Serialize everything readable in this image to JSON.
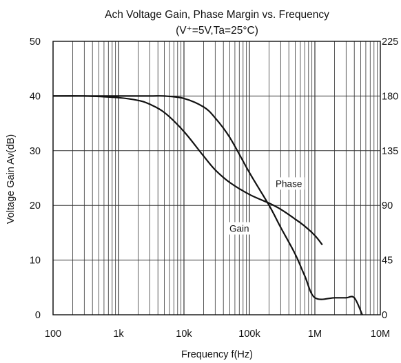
{
  "chart_data": {
    "type": "line",
    "title": "Ach Voltage Gain, Phase Margin vs. Frequency",
    "subtitle": "(V⁺=5V,Ta=25°C)",
    "xlabel": "Frequency f(Hz)",
    "ylabel": "Voltage Gain Av(dB)",
    "y2label": "",
    "xscale": "log",
    "xlim": [
      100,
      10000000
    ],
    "ylim": [
      0,
      50
    ],
    "y2lim": [
      0,
      225
    ],
    "grid": true,
    "x_ticks": [
      {
        "value": 100,
        "label": "100"
      },
      {
        "value": 1000,
        "label": "1k"
      },
      {
        "value": 10000,
        "label": "10k"
      },
      {
        "value": 100000,
        "label": "100k"
      },
      {
        "value": 1000000,
        "label": "1M"
      },
      {
        "value": 10000000,
        "label": "10M"
      }
    ],
    "y_ticks": [
      {
        "value": 0,
        "label": "0"
      },
      {
        "value": 10,
        "label": "10"
      },
      {
        "value": 20,
        "label": "20"
      },
      {
        "value": 30,
        "label": "30"
      },
      {
        "value": 40,
        "label": "40"
      },
      {
        "value": 50,
        "label": "50"
      }
    ],
    "y2_ticks": [
      {
        "value": 0,
        "label": "0"
      },
      {
        "value": 45,
        "label": "45"
      },
      {
        "value": 90,
        "label": "90"
      },
      {
        "value": 135,
        "label": "135"
      },
      {
        "value": 180,
        "label": "180"
      },
      {
        "value": 225,
        "label": "225"
      }
    ],
    "series": [
      {
        "name": "Gain",
        "axis": "left",
        "x": [
          100,
          300,
          1000,
          2000,
          3000,
          5000,
          10000,
          20000,
          30000,
          50000,
          100000,
          200000,
          300000,
          500000,
          700000,
          1000000,
          1300000
        ],
        "values": [
          40,
          40,
          39.7,
          39.2,
          38.5,
          37,
          33.5,
          29,
          26.5,
          24.2,
          22,
          20.4,
          19.3,
          17.5,
          16.2,
          14.5,
          12.8
        ],
        "color": "#111111"
      },
      {
        "name": "Phase",
        "axis": "right",
        "x": [
          100,
          1000,
          3000,
          5000,
          10000,
          20000,
          30000,
          50000,
          100000,
          200000,
          300000,
          500000,
          700000,
          1000000,
          2000000,
          3000000,
          4000000,
          5300000
        ],
        "values": [
          180,
          180,
          180,
          180,
          178,
          171,
          162,
          146,
          117,
          90,
          72,
          50,
          32,
          14,
          14,
          14,
          14,
          0
        ],
        "color": "#111111"
      }
    ],
    "annotations": [
      {
        "text": "Phase",
        "x": 400000,
        "y": 23.5
      },
      {
        "text": "Gain",
        "x": 70000,
        "y": 15.3
      }
    ]
  }
}
